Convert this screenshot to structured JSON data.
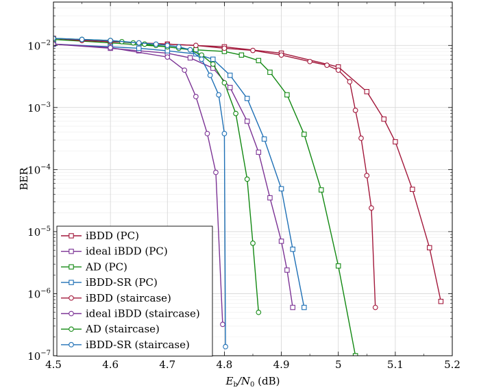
{
  "chart_data": {
    "type": "line",
    "title": "",
    "xlabel_parts": [
      "E",
      "b",
      "/N",
      "0",
      " (dB)"
    ],
    "ylabel": "BER",
    "xlim": [
      4.5,
      5.2
    ],
    "ylim": [
      1e-07,
      0.05
    ],
    "yscale": "log",
    "grid": true,
    "legend_position": "bottom-left",
    "x_ticks": [
      4.5,
      4.6,
      4.7,
      4.8,
      4.9,
      5,
      5.1,
      5.2
    ],
    "x_tick_labels": [
      "4.5",
      "4.6",
      "4.7",
      "4.8",
      "4.9",
      "5",
      "5.1",
      "5.2"
    ],
    "y_ticks": [
      {
        "value": 1e-07,
        "mantissa": "10",
        "exponent": "−7"
      },
      {
        "value": 1e-06,
        "mantissa": "10",
        "exponent": "−6"
      },
      {
        "value": 1e-05,
        "mantissa": "10",
        "exponent": "−5"
      },
      {
        "value": 0.0001,
        "mantissa": "10",
        "exponent": "−4"
      },
      {
        "value": 0.001,
        "mantissa": "10",
        "exponent": "−3"
      },
      {
        "value": 0.01,
        "mantissa": "10",
        "exponent": "−2"
      }
    ],
    "series": [
      {
        "name": "iBDD (PC)",
        "color": "#a2173a",
        "marker": "square",
        "x": [
          4.5,
          4.6,
          4.7,
          4.8,
          4.9,
          5.0,
          5.05,
          5.08,
          5.1,
          5.13,
          5.16,
          5.18
        ],
        "y": [
          0.013,
          0.0115,
          0.0105,
          0.0095,
          0.0075,
          0.0045,
          0.0018,
          0.00065,
          0.00028,
          4.8e-05,
          5.5e-06,
          7.5e-07
        ]
      },
      {
        "name": "ideal iBDD (PC)",
        "color": "#7b3294",
        "marker": "square",
        "x": [
          4.5,
          4.6,
          4.65,
          4.7,
          4.74,
          4.78,
          4.81,
          4.84,
          4.86,
          4.88,
          4.9,
          4.91,
          4.92
        ],
        "y": [
          0.0105,
          0.009,
          0.0082,
          0.0075,
          0.0063,
          0.0043,
          0.0021,
          0.0006,
          0.00019,
          3.5e-05,
          7e-06,
          2.4e-06,
          6e-07
        ]
      },
      {
        "name": "AD (PC)",
        "color": "#118811",
        "marker": "square",
        "x": [
          4.5,
          4.6,
          4.7,
          4.75,
          4.8,
          4.83,
          4.86,
          4.88,
          4.91,
          4.94,
          4.97,
          5.0,
          5.03
        ],
        "y": [
          0.0125,
          0.011,
          0.0095,
          0.0085,
          0.008,
          0.007,
          0.0057,
          0.0037,
          0.0016,
          0.00037,
          4.7e-05,
          2.8e-06,
          1e-07
        ]
      },
      {
        "name": "iBDD-SR (PC)",
        "color": "#1d6fb5",
        "marker": "square",
        "x": [
          4.5,
          4.6,
          4.65,
          4.7,
          4.75,
          4.78,
          4.81,
          4.84,
          4.87,
          4.9,
          4.92,
          4.94
        ],
        "y": [
          0.0105,
          0.0095,
          0.009,
          0.0082,
          0.0073,
          0.006,
          0.0033,
          0.0014,
          0.00031,
          4.9e-05,
          5.2e-06,
          6e-07
        ]
      },
      {
        "name": "iBDD (staircase)",
        "color": "#a2173a",
        "marker": "circle",
        "x": [
          4.5,
          4.55,
          4.6,
          4.65,
          4.7,
          4.75,
          4.8,
          4.85,
          4.9,
          4.95,
          4.98,
          5.0,
          5.02,
          5.03,
          5.04,
          5.05,
          5.058,
          5.065
        ],
        "y": [
          0.013,
          0.012,
          0.0115,
          0.011,
          0.0105,
          0.01,
          0.009,
          0.0083,
          0.007,
          0.0055,
          0.0048,
          0.004,
          0.0026,
          0.0009,
          0.00032,
          8e-05,
          2.4e-05,
          6e-07
        ]
      },
      {
        "name": "ideal iBDD (staircase)",
        "color": "#7b3294",
        "marker": "circle",
        "x": [
          4.5,
          4.6,
          4.7,
          4.73,
          4.75,
          4.77,
          4.785,
          4.797
        ],
        "y": [
          0.0105,
          0.0092,
          0.0065,
          0.004,
          0.0015,
          0.00038,
          9e-05,
          3.2e-07
        ]
      },
      {
        "name": "AD (staircase)",
        "color": "#118811",
        "marker": "circle",
        "x": [
          4.5,
          4.55,
          4.6,
          4.62,
          4.64,
          4.66,
          4.68,
          4.7,
          4.72,
          4.74,
          4.76,
          4.78,
          4.8,
          4.82,
          4.84,
          4.85,
          4.86
        ],
        "y": [
          0.013,
          0.0125,
          0.012,
          0.0115,
          0.011,
          0.0105,
          0.01,
          0.0095,
          0.009,
          0.0085,
          0.007,
          0.005,
          0.0025,
          0.0008,
          7e-05,
          6.5e-06,
          5e-07
        ]
      },
      {
        "name": "iBDD-SR (staircase)",
        "color": "#1d6fb5",
        "marker": "circle",
        "x": [
          4.5,
          4.55,
          4.6,
          4.65,
          4.68,
          4.7,
          4.72,
          4.74,
          4.76,
          4.775,
          4.79,
          4.8,
          4.802
        ],
        "y": [
          0.013,
          0.0125,
          0.012,
          0.011,
          0.0105,
          0.01,
          0.0095,
          0.0085,
          0.006,
          0.0033,
          0.0016,
          0.00038,
          1.4e-07
        ]
      }
    ]
  }
}
